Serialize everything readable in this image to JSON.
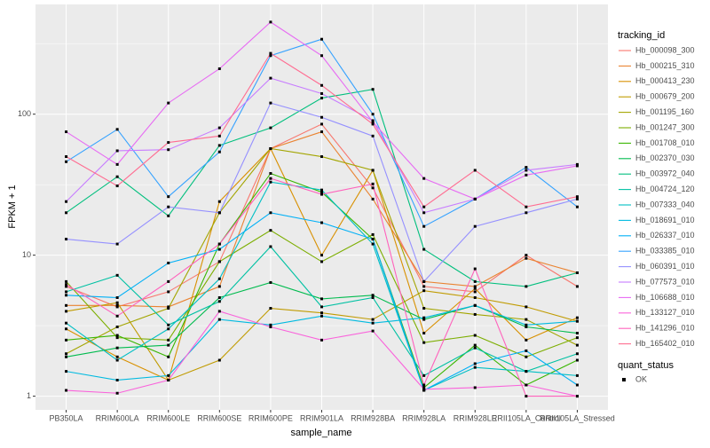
{
  "chart_data": {
    "type": "line",
    "log_scale": true,
    "x_label": "sample_name",
    "y_label": "FPKM + 1",
    "legend_title": "tracking_id",
    "shape_legend_title": "quant_status",
    "shape_legend_labels": [
      "OK"
    ],
    "categories": [
      "PB350LA",
      "RRIM600LA",
      "RRIM600LE",
      "RRIM600SE",
      "RRIM600PE",
      "RRIM901LA",
      "RRIM928BA",
      "RRIM928LA",
      "RRIM928LE",
      "RRII105LA_Control",
      "RRII105LA_Stressed"
    ],
    "ylim": [
      0.8,
      600
    ],
    "yticks": [
      1,
      10,
      100
    ],
    "grid": true,
    "point_color": "#000000",
    "series": [
      {
        "name": "Hb_000098_300",
        "color": "#F8766D",
        "values": [
          6.0,
          4.3,
          5.5,
          9,
          57,
          85,
          30,
          6,
          5.5,
          10,
          6
        ]
      },
      {
        "name": "Hb_000215_310",
        "color": "#EA8331",
        "values": [
          4.4,
          4.4,
          4.3,
          6,
          57,
          75,
          25,
          6.5,
          6,
          9.5,
          7.5
        ]
      },
      {
        "name": "Hb_000413_230",
        "color": "#D89000",
        "values": [
          3.0,
          1.9,
          1.3,
          24,
          57,
          10,
          40,
          2.8,
          5.8,
          2.5,
          3.6
        ]
      },
      {
        "name": "Hb_000679_200",
        "color": "#C09B00",
        "values": [
          4.0,
          4.6,
          1.3,
          1.8,
          4.2,
          3.9,
          3.5,
          5.6,
          5,
          4.3,
          3.4
        ]
      },
      {
        "name": "Hb_001195_160",
        "color": "#A3A500",
        "values": [
          2.0,
          3.1,
          4.2,
          20,
          57,
          50,
          40,
          4.2,
          3.8,
          3.5,
          2.3
        ]
      },
      {
        "name": "Hb_001247_300",
        "color": "#7CAE00",
        "values": [
          6.5,
          2.6,
          2.5,
          9,
          15,
          9,
          14,
          2.4,
          2.7,
          1.9,
          2.6
        ]
      },
      {
        "name": "Hb_001708_010",
        "color": "#39B600",
        "values": [
          2.5,
          2.7,
          1.9,
          12,
          38,
          28,
          13,
          1.15,
          2.3,
          1.2,
          1.8
        ]
      },
      {
        "name": "Hb_002370_030",
        "color": "#00BB4E",
        "values": [
          1.9,
          2.2,
          2.3,
          5,
          6.4,
          4.9,
          5.2,
          3.5,
          4.4,
          3.1,
          2.8
        ]
      },
      {
        "name": "Hb_003972_040",
        "color": "#00BF7D",
        "values": [
          20,
          36,
          19,
          60,
          80,
          130,
          150,
          11,
          6.5,
          6,
          7.5
        ]
      },
      {
        "name": "Hb_004724_120",
        "color": "#00C1A3",
        "values": [
          5.5,
          7.2,
          3.2,
          4.7,
          11.5,
          4.3,
          5,
          1.4,
          2.2,
          1.5,
          2
        ]
      },
      {
        "name": "Hb_007333_040",
        "color": "#00BFC4",
        "values": [
          3.3,
          1.8,
          3.0,
          6.8,
          33,
          29,
          12,
          1.1,
          1.6,
          1.5,
          1.4
        ]
      },
      {
        "name": "Hb_018691_010",
        "color": "#00BAE0",
        "values": [
          1.5,
          1.3,
          1.4,
          3.5,
          3.2,
          3.7,
          3.3,
          3.6,
          4.4,
          3.2,
          3.4
        ]
      },
      {
        "name": "Hb_026337_010",
        "color": "#00B0F6",
        "values": [
          5.2,
          5.0,
          8.8,
          11,
          20,
          17,
          13,
          1.1,
          1.7,
          2.1,
          1.2
        ]
      },
      {
        "name": "Hb_033385_010",
        "color": "#35A2FF",
        "values": [
          46,
          78,
          26,
          54,
          260,
          340,
          100,
          16,
          25,
          42,
          22
        ]
      },
      {
        "name": "Hb_060391_010",
        "color": "#9590FF",
        "values": [
          13,
          12,
          22,
          20,
          120,
          95,
          70,
          6.5,
          16,
          20,
          25
        ]
      },
      {
        "name": "Hb_077573_010",
        "color": "#C77CFF",
        "values": [
          24,
          55,
          56,
          80,
          180,
          140,
          90,
          20,
          25,
          40,
          44
        ]
      },
      {
        "name": "Hb_106688_010",
        "color": "#E76BF3",
        "values": [
          75,
          44,
          120,
          210,
          450,
          260,
          88,
          35,
          25,
          37,
          43
        ]
      },
      {
        "name": "Hb_133127_010",
        "color": "#FA62DB",
        "values": [
          1.1,
          1.05,
          1.3,
          4,
          3.1,
          2.5,
          2.9,
          1.12,
          1.15,
          1.2,
          1.0
        ]
      },
      {
        "name": "Hb_141296_010",
        "color": "#FF62BC",
        "values": [
          6.2,
          3.7,
          6.5,
          12,
          35,
          27,
          32,
          1.2,
          8,
          1.0,
          1.0
        ]
      },
      {
        "name": "Hb_165402_010",
        "color": "#FF6C91",
        "values": [
          50,
          31,
          63,
          70,
          270,
          160,
          85,
          22,
          40,
          22,
          26
        ]
      }
    ]
  }
}
